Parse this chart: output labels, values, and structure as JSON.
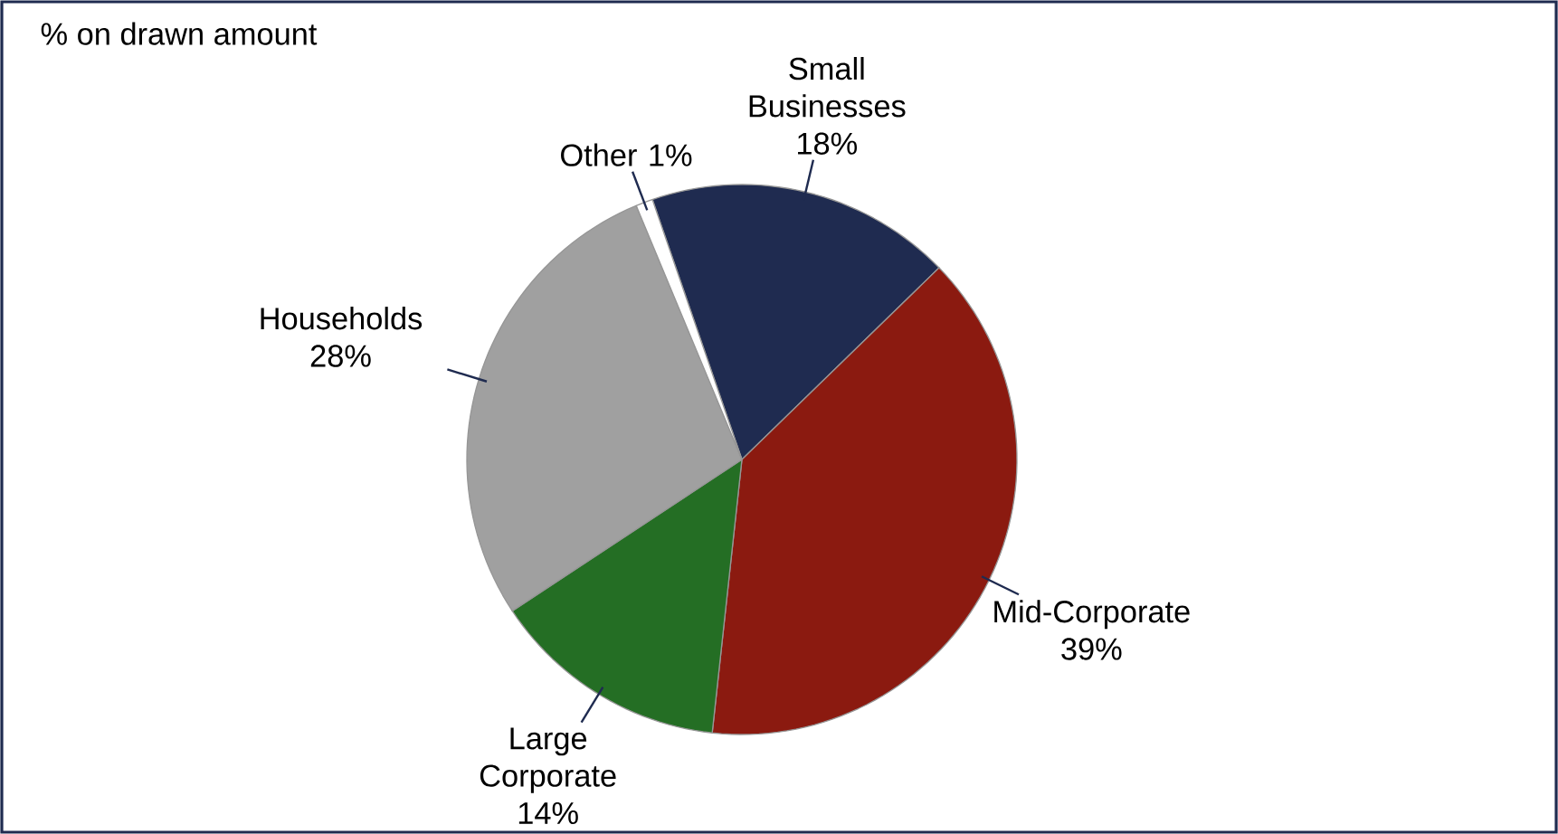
{
  "chart_data": {
    "type": "pie",
    "title": "% on drawn amount",
    "categories": [
      "Small Businesses",
      "Mid-Corporate",
      "Large Corporate",
      "Households",
      "Other"
    ],
    "values": [
      18,
      39,
      14,
      28,
      1
    ],
    "colors": [
      "#1f2b50",
      "#8b1a10",
      "#246e24",
      "#a0a0a0",
      "#ffffff"
    ],
    "value_labels": [
      "18%",
      "39%",
      "14%",
      "28%",
      "1%"
    ]
  }
}
